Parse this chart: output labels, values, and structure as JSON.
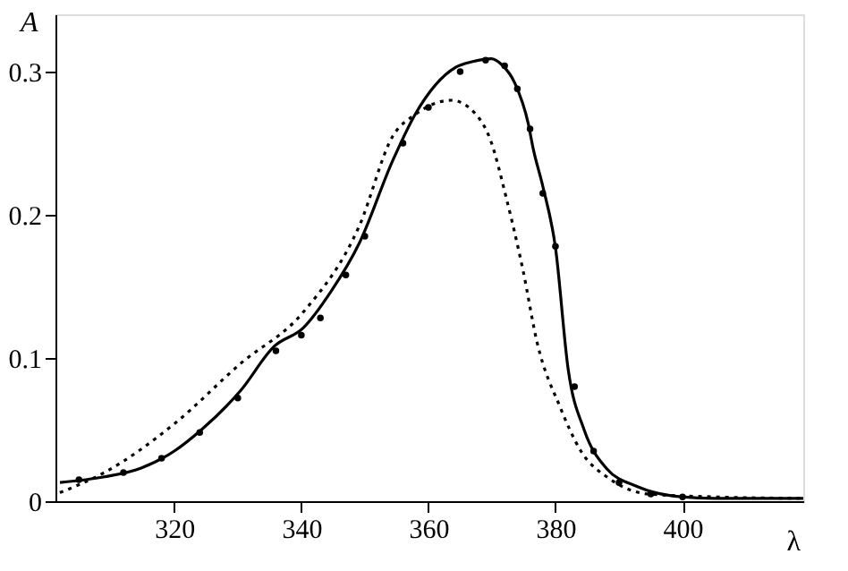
{
  "chart_data": {
    "type": "line",
    "xlabel": "λ",
    "ylabel": "A",
    "xlim": [
      301.3,
      419
    ],
    "ylim": [
      0,
      0.34
    ],
    "xticks": [
      320,
      340,
      360,
      380,
      400
    ],
    "yticks": [
      0,
      0.1,
      0.2,
      0.3
    ],
    "grid": false,
    "series": [
      {
        "color": "#000000",
        "line_style": "solid",
        "x": [
          302,
          309,
          314.7,
          320,
          324.3,
          330.4,
          335.7,
          340.3,
          344.6,
          349.1,
          354.4,
          357.9,
          364.3,
          367,
          369.9,
          371.5,
          373.6,
          375.7,
          376.5,
          378,
          380,
          382,
          384.5,
          388,
          393,
          398,
          405,
          419
        ],
        "values": [
          0.013,
          0.017,
          0.023,
          0.035,
          0.05,
          0.077,
          0.108,
          0.121,
          0.146,
          0.18,
          0.238,
          0.27,
          0.303,
          0.307,
          0.309,
          0.305,
          0.292,
          0.264,
          0.246,
          0.22,
          0.177,
          0.092,
          0.05,
          0.023,
          0.01,
          0.004,
          0.002,
          0.002
        ]
      },
      {
        "color": "#000000",
        "line_style": "dotted",
        "x": [
          302,
          309,
          320,
          330.4,
          340.3,
          349.1,
          354.4,
          357.9,
          363.6,
          367.5,
          369.7,
          372.3,
          374.9,
          377.1,
          380.7,
          384,
          388.4,
          394.6,
          405,
          419
        ],
        "values": [
          0.006,
          0.02,
          0.054,
          0.096,
          0.132,
          0.192,
          0.255,
          0.27,
          0.28,
          0.27,
          0.253,
          0.211,
          0.161,
          0.111,
          0.066,
          0.035,
          0.016,
          0.005,
          0.003,
          0.002
        ]
      },
      {
        "type": "scatter",
        "marker": "circle",
        "color": "#000000",
        "x": [
          305,
          312,
          318,
          324,
          330,
          336,
          340,
          343,
          347,
          350,
          356,
          360,
          365,
          369,
          372,
          374,
          376,
          378,
          380,
          383,
          386,
          390,
          395,
          400
        ],
        "values": [
          0.015,
          0.02,
          0.03,
          0.048,
          0.072,
          0.105,
          0.116,
          0.128,
          0.158,
          0.185,
          0.25,
          0.275,
          0.3,
          0.308,
          0.304,
          0.288,
          0.26,
          0.215,
          0.178,
          0.08,
          0.035,
          0.013,
          0.005,
          0.003
        ]
      }
    ]
  }
}
